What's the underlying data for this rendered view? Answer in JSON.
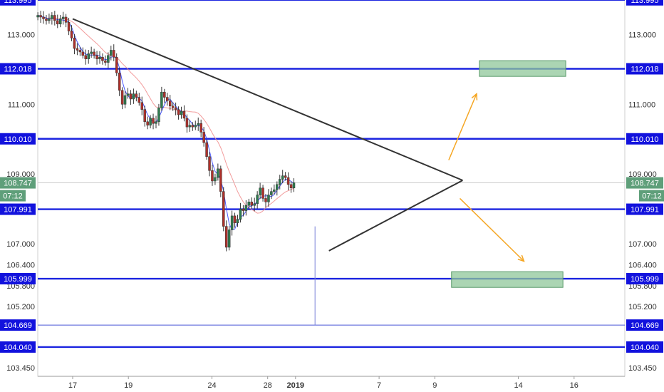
{
  "chart_data": {
    "type": "candlestick",
    "title": "",
    "xlabel": "",
    "ylabel": "",
    "ylim": [
      103.2,
      113.99
    ],
    "x_ticks": [
      {
        "label": "17",
        "day": 0
      },
      {
        "label": "19",
        "day": 2
      },
      {
        "label": "24",
        "day": 5
      },
      {
        "label": "28",
        "day": 7
      },
      {
        "label": "2019",
        "day": 8,
        "bold": true
      },
      {
        "label": "7",
        "day": 11
      },
      {
        "label": "9",
        "day": 13
      },
      {
        "label": "14",
        "day": 16
      },
      {
        "label": "16",
        "day": 18
      }
    ],
    "y_ticks": [
      "113.000",
      "111.000",
      "109.000",
      "107.000",
      "106.400",
      "105.800",
      "105.200",
      "103.450"
    ],
    "y_tick_values": [
      113.0,
      111.0,
      109.0,
      107.0,
      106.4,
      105.8,
      105.2,
      103.45
    ],
    "horizontal_levels": [
      {
        "label": "113.995",
        "value": 113.995,
        "style": "level"
      },
      {
        "label": "112.018",
        "value": 112.018,
        "style": "level"
      },
      {
        "label": "110.010",
        "value": 110.01,
        "style": "level"
      },
      {
        "label": "107.991",
        "value": 107.991,
        "style": "level"
      },
      {
        "label": "105.999",
        "value": 105.999,
        "style": "level"
      },
      {
        "label": "104.669",
        "value": 104.669,
        "style": "thin"
      },
      {
        "label": "104.040",
        "value": 104.04,
        "style": "level"
      }
    ],
    "current_price": {
      "label": "108.747",
      "value": 108.747,
      "countdown": "07:12"
    },
    "closes": [
      113.55,
      113.5,
      113.45,
      113.4,
      113.45,
      113.55,
      113.4,
      113.3,
      113.45,
      113.5,
      113.35,
      113.1,
      112.9,
      112.6,
      112.55,
      112.5,
      112.4,
      112.3,
      112.45,
      112.5,
      112.4,
      112.3,
      112.35,
      112.25,
      112.2,
      112.4,
      112.55,
      112.35,
      111.9,
      111.4,
      111.0,
      111.25,
      111.3,
      111.15,
      111.3,
      111.2,
      111.05,
      110.85,
      110.5,
      110.4,
      110.6,
      110.45,
      110.5,
      110.9,
      111.35,
      111.2,
      111.1,
      110.95,
      110.9,
      110.85,
      110.7,
      110.8,
      110.6,
      110.35,
      110.4,
      110.35,
      110.4,
      110.45,
      110.2,
      109.9,
      109.5,
      109.1,
      108.8,
      108.9,
      109.15,
      108.5,
      107.5,
      106.9,
      107.4,
      107.8,
      107.6,
      107.7,
      108.0,
      107.95,
      108.1,
      108.2,
      108.1,
      108.15,
      108.4,
      108.6,
      108.3,
      108.2,
      108.4,
      108.5,
      108.55,
      108.7,
      108.85,
      108.95,
      108.9,
      108.7,
      108.6,
      108.75
    ],
    "series": [
      {
        "name": "",
        "role": "fast-ma",
        "color": "#2b3cff"
      },
      {
        "name": "",
        "role": "slow-ma",
        "color": "#f08a8a"
      }
    ],
    "annotations": [
      {
        "kind": "trendline",
        "from": {
          "day": 0,
          "price": 113.45
        },
        "to": {
          "day": 14,
          "price": 108.82
        }
      },
      {
        "kind": "trendline",
        "from": {
          "day": 9.2,
          "price": 106.8
        },
        "to": {
          "day": 14,
          "price": 108.82
        }
      },
      {
        "kind": "spike",
        "day": 8.7,
        "from_price": 107.5,
        "to_price": 104.669
      },
      {
        "kind": "arrow",
        "from": {
          "day": 13.5,
          "price": 109.4
        },
        "to": {
          "day": 14.5,
          "price": 111.3
        },
        "color": "#f5a623"
      },
      {
        "kind": "arrow",
        "from": {
          "day": 13.9,
          "price": 108.3
        },
        "to": {
          "day": 16.2,
          "price": 106.5
        },
        "color": "#f5a623"
      },
      {
        "kind": "target-box",
        "day_from": 14.6,
        "day_to": 17.7,
        "price_from": 111.8,
        "price_to": 112.25,
        "color": "#8fc79a"
      },
      {
        "kind": "target-box",
        "day_from": 13.6,
        "day_to": 17.6,
        "price_from": 105.75,
        "price_to": 106.2,
        "color": "#8fc79a"
      }
    ]
  }
}
